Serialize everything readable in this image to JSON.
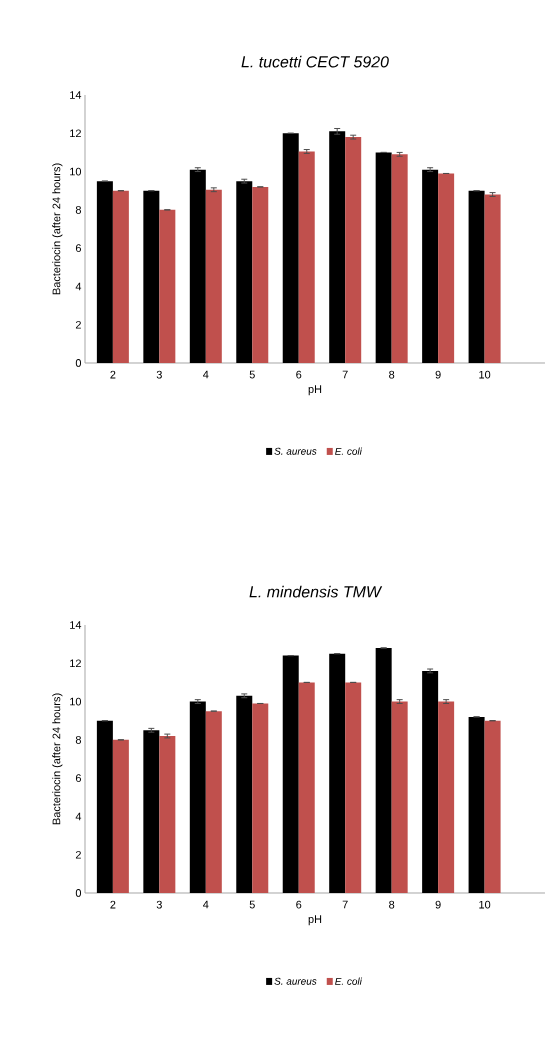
{
  "chart_data": [
    {
      "type": "bar",
      "title": "L. tucetti  CECT 5920",
      "xlabel": "pH",
      "ylabel": "Bacteriocin (after 24 hours)",
      "categories": [
        "2",
        "3",
        "4",
        "5",
        "6",
        "7",
        "8",
        "9",
        "10"
      ],
      "series": [
        {
          "name": "S. aureus",
          "color": "#000000",
          "values": [
            9.5,
            9.0,
            10.1,
            9.5,
            12.0,
            12.1,
            11.0,
            10.1,
            9.0
          ],
          "errors": [
            null,
            null,
            0.1,
            0.1,
            null,
            0.15,
            null,
            0.1,
            null
          ]
        },
        {
          "name": "E. coli",
          "color": "#c0504d",
          "values": [
            9.0,
            8.0,
            9.05,
            9.2,
            11.05,
            11.8,
            10.9,
            9.9,
            8.8
          ],
          "errors": [
            null,
            null,
            0.1,
            null,
            0.1,
            0.1,
            0.1,
            null,
            0.1
          ]
        }
      ],
      "ylim": [
        0,
        14
      ],
      "yticks": [
        0,
        2,
        4,
        6,
        8,
        10,
        12,
        14
      ],
      "grid": false,
      "legend": "bottom"
    },
    {
      "type": "bar",
      "title": "L. mindensis TMW",
      "xlabel": "pH",
      "ylabel": "Bacteriocin (after 24 hours)",
      "categories": [
        "2",
        "3",
        "4",
        "5",
        "6",
        "7",
        "8",
        "9",
        "10"
      ],
      "series": [
        {
          "name": "S. aureus",
          "color": "#000000",
          "values": [
            9.0,
            8.5,
            10.0,
            10.3,
            12.4,
            12.5,
            12.8,
            11.6,
            9.2
          ],
          "errors": [
            null,
            0.1,
            0.1,
            0.1,
            null,
            null,
            null,
            0.1,
            null
          ]
        },
        {
          "name": "E. coli",
          "color": "#c0504d",
          "values": [
            8.0,
            8.2,
            9.5,
            9.9,
            11.0,
            11.0,
            10.0,
            10.0,
            9.0
          ],
          "errors": [
            null,
            0.1,
            null,
            null,
            null,
            null,
            0.1,
            0.1,
            null
          ]
        }
      ],
      "ylim": [
        0,
        14
      ],
      "yticks": [
        0,
        2,
        4,
        6,
        8,
        10,
        12,
        14
      ],
      "grid": false,
      "legend": "bottom"
    }
  ]
}
